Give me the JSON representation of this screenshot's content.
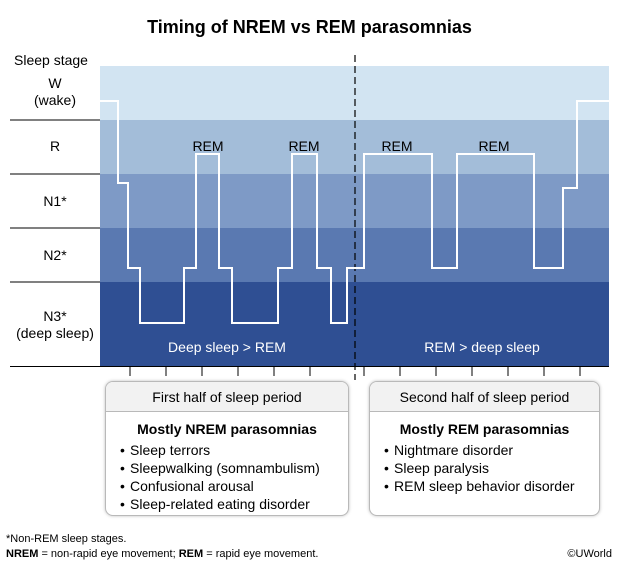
{
  "title": "Timing of NREM vs REM parasomnias",
  "y_axis_title": "Sleep stage",
  "stages": [
    {
      "lines": [
        "W",
        "(wake)"
      ],
      "color": "#d2e4f2"
    },
    {
      "lines": [
        "R"
      ],
      "color": "#a3bdd9"
    },
    {
      "lines": [
        "N1*"
      ],
      "color": "#7e9ac6"
    },
    {
      "lines": [
        "N2*"
      ],
      "color": "#5a79b1"
    },
    {
      "lines": [
        "N3*",
        "(deep sleep)"
      ],
      "color": "#2f4f93"
    }
  ],
  "rem_labels": [
    "REM",
    "REM",
    "REM",
    "REM"
  ],
  "region_labels": [
    "Deep sleep > REM",
    "REM > deep sleep"
  ],
  "hypnogram_stage_sequence": [
    "W",
    "N1",
    "N2",
    "N3",
    "N2",
    "R",
    "N2",
    "N3",
    "N2",
    "R",
    "N2",
    "N3",
    "N2",
    "R",
    "N2",
    "R",
    "N2",
    "N1",
    "W"
  ],
  "boxes": [
    {
      "header": "First half of sleep period",
      "subtitle": "Mostly NREM parasomnias",
      "items": [
        "Sleep terrors",
        "Sleepwalking (somnambulism)",
        "Confusional arousal",
        "Sleep-related eating disorder"
      ]
    },
    {
      "header": "Second half of sleep period",
      "subtitle": "Mostly REM parasomnias",
      "items": [
        "Nightmare disorder",
        "Sleep paralysis",
        "REM sleep behavior disorder"
      ]
    }
  ],
  "footnotes": {
    "line1": "*Non-REM sleep stages.",
    "line2_nrem_abbr": "NREM",
    "line2_nrem_def": " = non-rapid eye movement; ",
    "line2_rem_abbr": "REM",
    "line2_rem_def": " = rapid eye movement."
  },
  "copyright": "©UWorld"
}
